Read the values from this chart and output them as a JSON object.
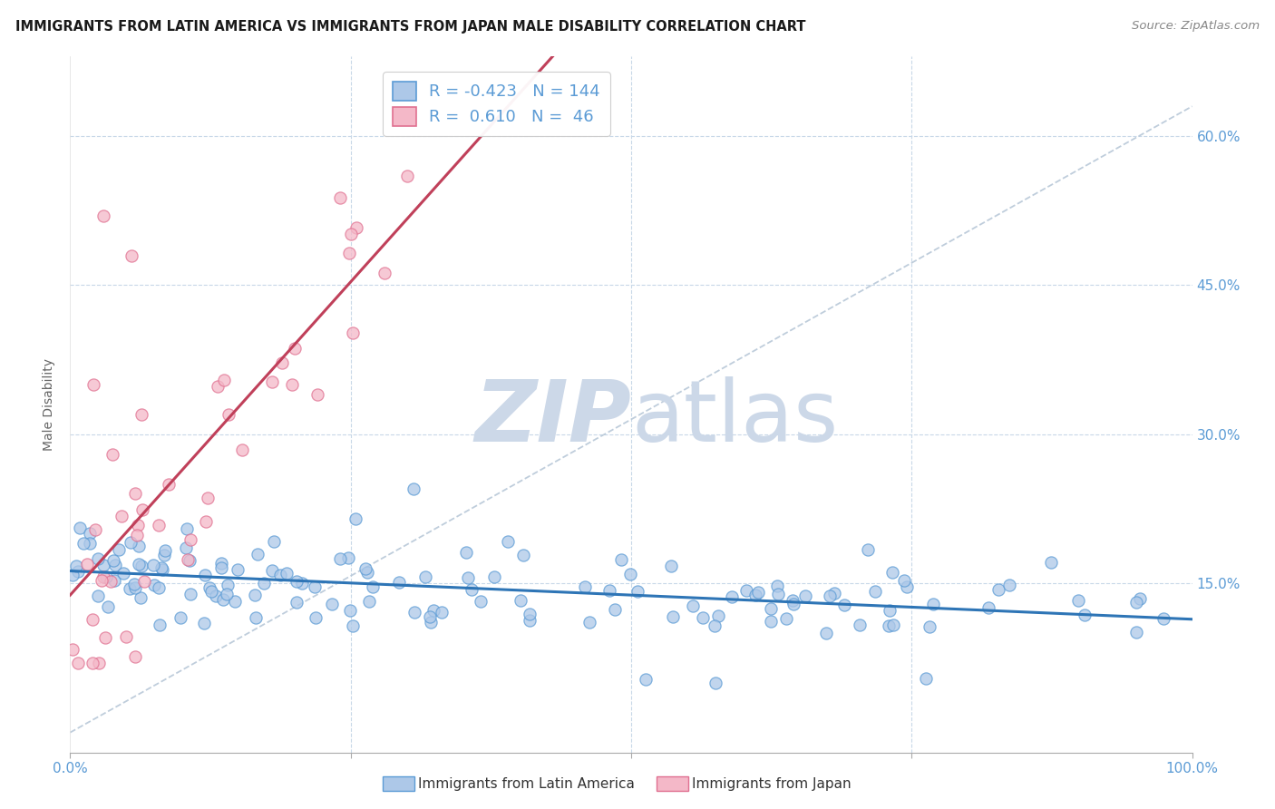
{
  "title": "IMMIGRANTS FROM LATIN AMERICA VS IMMIGRANTS FROM JAPAN MALE DISABILITY CORRELATION CHART",
  "source": "Source: ZipAtlas.com",
  "xlabel_blue": "Immigrants from Latin America",
  "xlabel_pink": "Immigrants from Japan",
  "ylabel": "Male Disability",
  "legend_blue_r": "-0.423",
  "legend_blue_n": "144",
  "legend_pink_r": "0.610",
  "legend_pink_n": "46",
  "blue_color": "#adc8e8",
  "blue_edge_color": "#5b9bd5",
  "blue_line_color": "#2e75b6",
  "pink_color": "#f4b8c8",
  "pink_edge_color": "#e07090",
  "pink_line_color": "#c0405a",
  "ref_line_color": "#b8c8d8",
  "grid_color": "#c8d8e8",
  "background_color": "#ffffff",
  "watermark_color": "#ccd8e8",
  "title_color": "#1a1a1a",
  "source_color": "#888888",
  "tick_color": "#5b9bd5",
  "ylabel_color": "#666666",
  "xlim": [
    0.0,
    1.0
  ],
  "ylim": [
    -0.02,
    0.68
  ],
  "ytick_vals": [
    0.15,
    0.3,
    0.45,
    0.6
  ],
  "ytick_labels": [
    "15.0%",
    "30.0%",
    "45.0%",
    "60.0%"
  ],
  "seed": 12345
}
